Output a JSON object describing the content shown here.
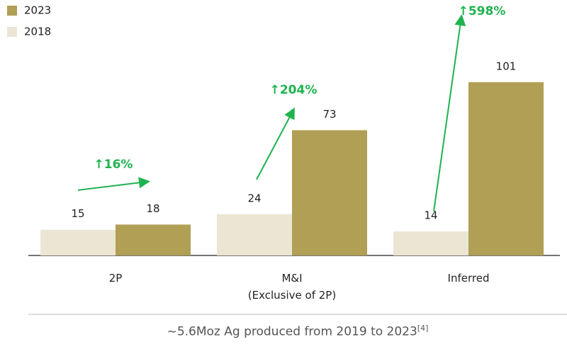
{
  "chart_data": {
    "type": "bar",
    "categories": [
      "2P",
      "M&I\n(Exclusive of 2P)",
      "Inferred"
    ],
    "series": [
      {
        "name": "2018",
        "color": "#ebe5d3",
        "values": [
          15,
          24,
          14
        ]
      },
      {
        "name": "2023",
        "color": "#b09f55",
        "values": [
          18,
          73,
          101
        ]
      }
    ],
    "ylim": [
      0,
      110
    ],
    "annotations": [
      "↑16%",
      "↑204%",
      "↑598%"
    ],
    "annotation_color": "#1fb34f",
    "footnote": "~5.6Moz Ag produced from 2019 to 2023",
    "footnote_ref": "[4]"
  }
}
